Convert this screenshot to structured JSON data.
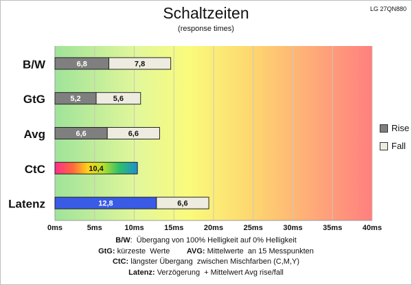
{
  "chart_data": {
    "type": "bar",
    "orientation": "horizontal",
    "stacked": true,
    "title": "Schaltzeiten",
    "subtitle": "(response times)",
    "model": "LG 27QN880",
    "categories": [
      "B/W",
      "GtG",
      "Avg",
      "CtC",
      "Latenz"
    ],
    "series": [
      {
        "name": "Rise",
        "values": [
          6.8,
          5.2,
          6.6,
          10.4,
          12.8
        ],
        "labels": [
          "6,8",
          "5,2",
          "6,6",
          "10,4",
          "12,8"
        ]
      },
      {
        "name": "Fall",
        "values": [
          7.8,
          5.6,
          6.6,
          null,
          6.6
        ],
        "labels": [
          "7,8",
          "5,6",
          "6,6",
          "",
          "6,6"
        ]
      }
    ],
    "bar_colors": {
      "Rise": "#7f7f7f",
      "Fall": "#eeece1",
      "CtC": "rainbow",
      "Latenz_rise": "#3a5be5"
    },
    "xlim": [
      0,
      40
    ],
    "xticks": [
      0,
      5,
      10,
      15,
      20,
      25,
      30,
      35,
      40
    ],
    "xtick_unit": "ms",
    "grid": true,
    "background": "gradient green-yellow-orange-red",
    "legend_position": "right",
    "legend": [
      {
        "label": "Rise",
        "color": "#7f7f7f"
      },
      {
        "label": "Fall",
        "color": "#eeece1"
      }
    ]
  },
  "notes": [
    {
      "parts": [
        {
          "b": "B/W"
        },
        {
          "t": ":  Übergang von 100% Helligkeit auf 0% Helligkeit"
        }
      ]
    },
    {
      "parts": [
        {
          "b": "GtG:"
        },
        {
          "t": " kürzeste  Werte        "
        },
        {
          "b": "AVG:"
        },
        {
          "t": " Mittelwerte  an 15 Messpunkten"
        }
      ]
    },
    {
      "parts": [
        {
          "b": "CtC:"
        },
        {
          "t": " längster Übergang  zwischen Mischfarben (C,M,Y)"
        }
      ]
    },
    {
      "parts": [
        {
          "b": "Latenz:"
        },
        {
          "t": " Verzögerung  + Mittelwert Avg rise/fall"
        }
      ]
    }
  ]
}
